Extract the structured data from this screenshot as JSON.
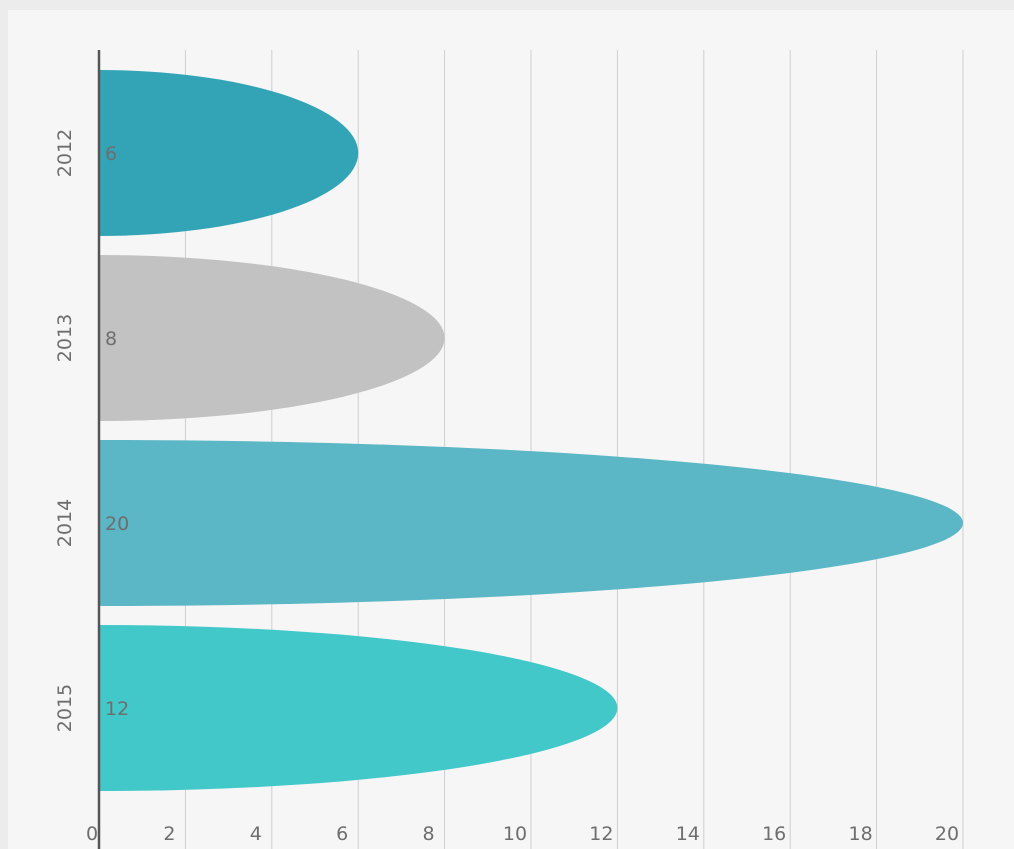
{
  "chart_data": {
    "type": "bar",
    "orientation": "horizontal",
    "bar_shape": "half-ellipse",
    "categories": [
      "2012",
      "2013",
      "2014",
      "2015"
    ],
    "values": [
      6,
      8,
      20,
      12
    ],
    "colors": [
      "#33a4b6",
      "#c2c2c2",
      "#5bb6c5",
      "#43c8ca"
    ],
    "xlim": [
      0,
      20
    ],
    "xticks": [
      0,
      2,
      4,
      6,
      8,
      10,
      12,
      14,
      16,
      18,
      20
    ],
    "grid": "vertical",
    "data_labels": [
      "6",
      "8",
      "20",
      "12"
    ],
    "legend": "none"
  }
}
